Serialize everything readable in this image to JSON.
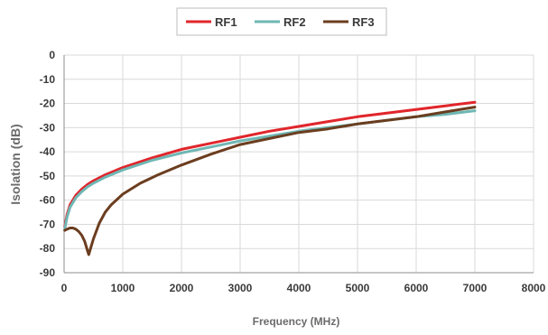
{
  "chart_data": {
    "type": "line",
    "title": "",
    "xlabel": "Frequency (MHz)",
    "ylabel": "Isolation (dB)",
    "xlim": [
      0,
      8000
    ],
    "ylim": [
      -90,
      0
    ],
    "x_ticks": [
      0,
      1000,
      2000,
      3000,
      4000,
      5000,
      6000,
      7000,
      8000
    ],
    "y_ticks": [
      0,
      -10,
      -20,
      -30,
      -40,
      -50,
      -60,
      -70,
      -80,
      -90
    ],
    "grid": true,
    "legend_position": "top-center",
    "series": [
      {
        "name": "RF1",
        "color": "#e0262b",
        "x": [
          10,
          50,
          100,
          200,
          300,
          400,
          500,
          700,
          1000,
          1500,
          2000,
          2500,
          3000,
          3500,
          4000,
          4500,
          5000,
          5500,
          6000,
          6500,
          7000
        ],
        "y": [
          -71,
          -66,
          -62,
          -58,
          -55.5,
          -53.5,
          -52,
          -49.5,
          -46.5,
          -42.5,
          -39,
          -36.5,
          -34,
          -31.5,
          -29.5,
          -27.5,
          -25.5,
          -24,
          -22.5,
          -21,
          -19.5
        ]
      },
      {
        "name": "RF2",
        "color": "#6fb7b4",
        "x": [
          10,
          50,
          100,
          200,
          300,
          400,
          500,
          700,
          1000,
          1500,
          2000,
          2500,
          3000,
          3500,
          4000,
          4500,
          5000,
          5500,
          6000,
          6500,
          7000
        ],
        "y": [
          -72,
          -67,
          -63,
          -59,
          -56.5,
          -54.5,
          -53,
          -50.5,
          -47.5,
          -43.5,
          -40.5,
          -38,
          -35.5,
          -33.5,
          -31.5,
          -30,
          -28.5,
          -27,
          -25.5,
          -24.5,
          -23
        ]
      },
      {
        "name": "RF3",
        "color": "#6b3d1f",
        "x": [
          10,
          50,
          100,
          150,
          200,
          250,
          300,
          350,
          400,
          420,
          450,
          500,
          600,
          700,
          800,
          1000,
          1300,
          1600,
          2000,
          2500,
          3000,
          3500,
          4000,
          4500,
          5000,
          5500,
          6000,
          6500,
          7000
        ],
        "y": [
          -72.5,
          -72,
          -71.5,
          -71.5,
          -72,
          -73,
          -74.5,
          -77,
          -81,
          -82.5,
          -80,
          -76,
          -69.5,
          -65,
          -62,
          -57.5,
          -53,
          -49.5,
          -45.5,
          -41,
          -37,
          -34.5,
          -32,
          -30.5,
          -28.5,
          -27,
          -25.5,
          -23.5,
          -21.5
        ]
      }
    ]
  }
}
